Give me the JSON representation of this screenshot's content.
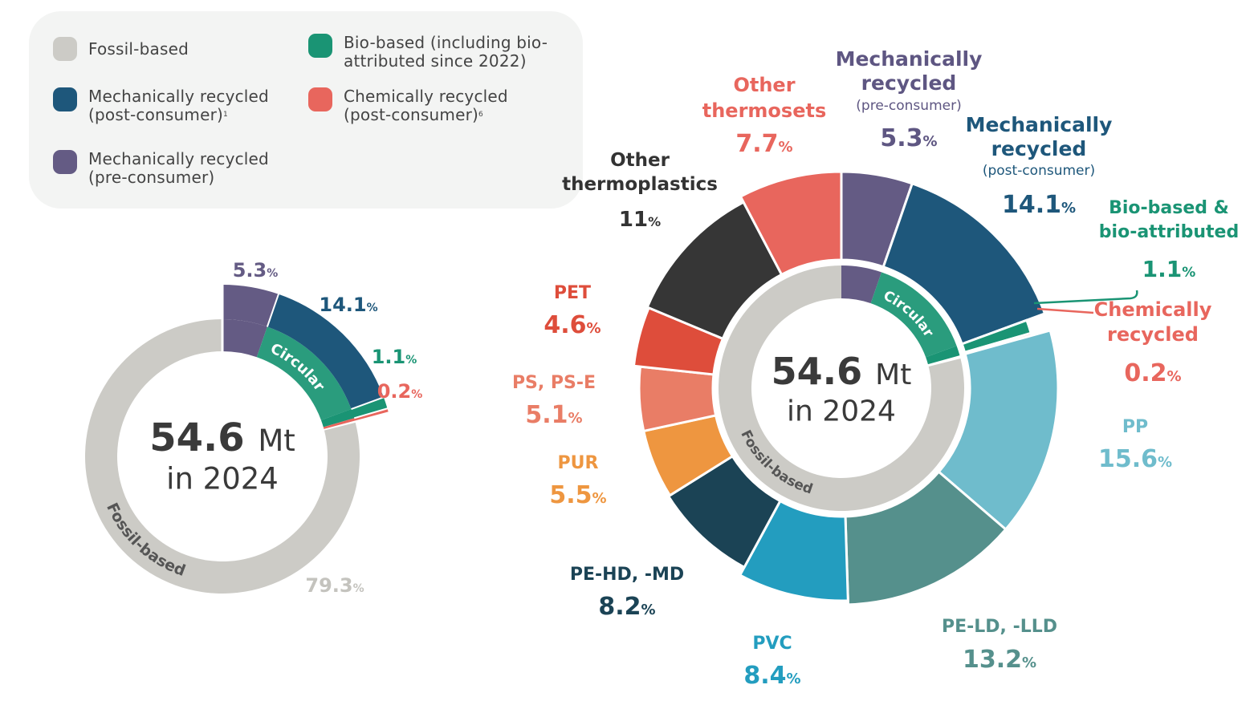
{
  "colors": {
    "fossil": "#cccbc6",
    "mech_post": "#1e577b",
    "mech_pre": "#645b84",
    "bio": "#1a9474",
    "chem": "#e8665d",
    "circular_band": "#2a9c7d"
  },
  "legend": [
    {
      "key": "fossil",
      "label": "Fossil-based",
      "note": ""
    },
    {
      "key": "mech_post",
      "label": "Mechanically recycled (post-consumer)",
      "note": "1"
    },
    {
      "key": "mech_pre",
      "label": "Mechanically recycled (pre-consumer)",
      "note": ""
    },
    {
      "key": "bio",
      "label": "Bio-based (including bio-attributed since 2022)",
      "note": ""
    },
    {
      "key": "chem",
      "label": "Chemically recycled (post-consumer)",
      "note": "6"
    }
  ],
  "center": {
    "value": "54.6",
    "unit": "Mt",
    "year_text": "in 2024"
  },
  "ring_labels": {
    "circular": "Circular",
    "fossil": "Fossil-based"
  },
  "chart_data": [
    {
      "type": "pie",
      "variant": "donut",
      "title": "",
      "unit": "%",
      "series": [
        {
          "key": "mech_pre",
          "label": "",
          "value": 5.3,
          "display": "5.3",
          "color": "#645b84",
          "label_color": "#645b84"
        },
        {
          "key": "mech_post",
          "label": "",
          "value": 14.1,
          "display": "14.1",
          "color": "#1e577b",
          "label_color": "#1e577b"
        },
        {
          "key": "bio",
          "label": "",
          "value": 1.1,
          "display": "1.1",
          "color": "#1a9474",
          "label_color": "#1a9474"
        },
        {
          "key": "chem",
          "label": "",
          "value": 0.2,
          "display": "0.2",
          "color": "#e8665d",
          "label_color": "#e8665d"
        },
        {
          "key": "fossil",
          "label": "",
          "value": 79.3,
          "display": "79.3",
          "color": "#cccbc6",
          "label_color": "#c4c3be"
        }
      ]
    },
    {
      "type": "pie",
      "variant": "donut",
      "title": "",
      "unit": "%",
      "inner_ring": [
        {
          "name": "Circular",
          "value": 20.7
        },
        {
          "name": "Fossil-based",
          "value": 79.3
        }
      ],
      "series": [
        {
          "key": "mech_pre",
          "label": "Mechanically recycled",
          "sub": "(pre-consumer)",
          "value": 5.3,
          "display": "5.3",
          "color": "#645b84",
          "label_color": "#5e5682"
        },
        {
          "key": "mech_post",
          "label": "Mechanically recycled",
          "sub": "(post-consumer)",
          "value": 14.1,
          "display": "14.1",
          "color": "#1e577b",
          "label_color": "#1e577b"
        },
        {
          "key": "bio",
          "label": "Bio-based & bio-attributed",
          "sub": "",
          "value": 1.1,
          "display": "1.1",
          "color": "#1a9474",
          "label_color": "#1a9474"
        },
        {
          "key": "chem",
          "label": "Chemically recycled",
          "sub": "",
          "value": 0.2,
          "display": "0.2",
          "color": "#e8665d",
          "label_color": "#e8665d"
        },
        {
          "key": "pp",
          "label": "PP",
          "sub": "",
          "value": 15.6,
          "display": "15.6",
          "color": "#6fbccc",
          "label_color": "#6fbccc"
        },
        {
          "key": "peld",
          "label": "PE-LD, -LLD",
          "sub": "",
          "value": 13.2,
          "display": "13.2",
          "color": "#55908c",
          "label_color": "#55908c"
        },
        {
          "key": "pvc",
          "label": "PVC",
          "sub": "",
          "value": 8.4,
          "display": "8.4",
          "color": "#239dbf",
          "label_color": "#239dbf"
        },
        {
          "key": "pehd",
          "label": "PE-HD, -MD",
          "sub": "",
          "value": 8.2,
          "display": "8.2",
          "color": "#1b4355",
          "label_color": "#1b4355"
        },
        {
          "key": "pur",
          "label": "PUR",
          "sub": "",
          "value": 5.5,
          "display": "5.5",
          "color": "#ee9640",
          "label_color": "#ee9640"
        },
        {
          "key": "ps",
          "label": "PS, PS-E",
          "sub": "",
          "value": 5.1,
          "display": "5.1",
          "color": "#e97d66",
          "label_color": "#e97d66"
        },
        {
          "key": "pet",
          "label": "PET",
          "sub": "",
          "value": 4.6,
          "display": "4.6",
          "color": "#de4d3b",
          "label_color": "#de4d3b"
        },
        {
          "key": "othtp",
          "label": "Other thermoplastics",
          "sub": "",
          "value": 11,
          "display": "11",
          "color": "#363636",
          "label_color": "#363636"
        },
        {
          "key": "othts",
          "label": "Other thermosets",
          "sub": "",
          "value": 7.7,
          "display": "7.7",
          "color": "#e8665d",
          "label_color": "#e8665d"
        }
      ]
    }
  ]
}
